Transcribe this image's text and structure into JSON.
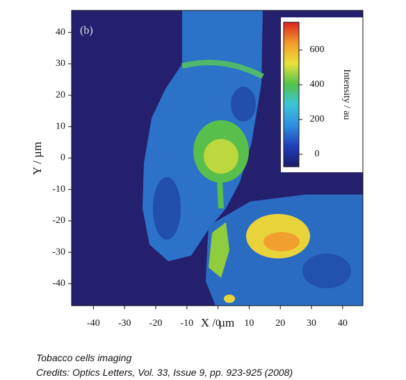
{
  "chart_data": {
    "type": "heatmap",
    "panel_label": "(b)",
    "xlabel": "X / µm",
    "ylabel": "Y / µm",
    "xlim": [
      -47,
      46.5
    ],
    "ylim": [
      -47,
      47
    ],
    "xticks": [
      -40,
      -30,
      -20,
      -10,
      0,
      10,
      20,
      30,
      40
    ],
    "yticks": [
      -40,
      -30,
      -20,
      -10,
      0,
      10,
      20,
      30,
      40
    ],
    "colorbar_label": "Intensity / au",
    "clim": [
      -72,
      760
    ],
    "cticks": [
      0,
      200,
      400,
      600
    ],
    "colormap": [
      "#1e1a6a",
      "#1f3fb8",
      "#2f8fe0",
      "#3cc4d8",
      "#52c24a",
      "#e9e23a",
      "#f39a2a",
      "#d8231e"
    ]
  },
  "caption": [
    "Tobacco cells imaging",
    "Credits: Optics Letters, Vol. 33, Issue 9, pp. 923-925 (2008)"
  ]
}
